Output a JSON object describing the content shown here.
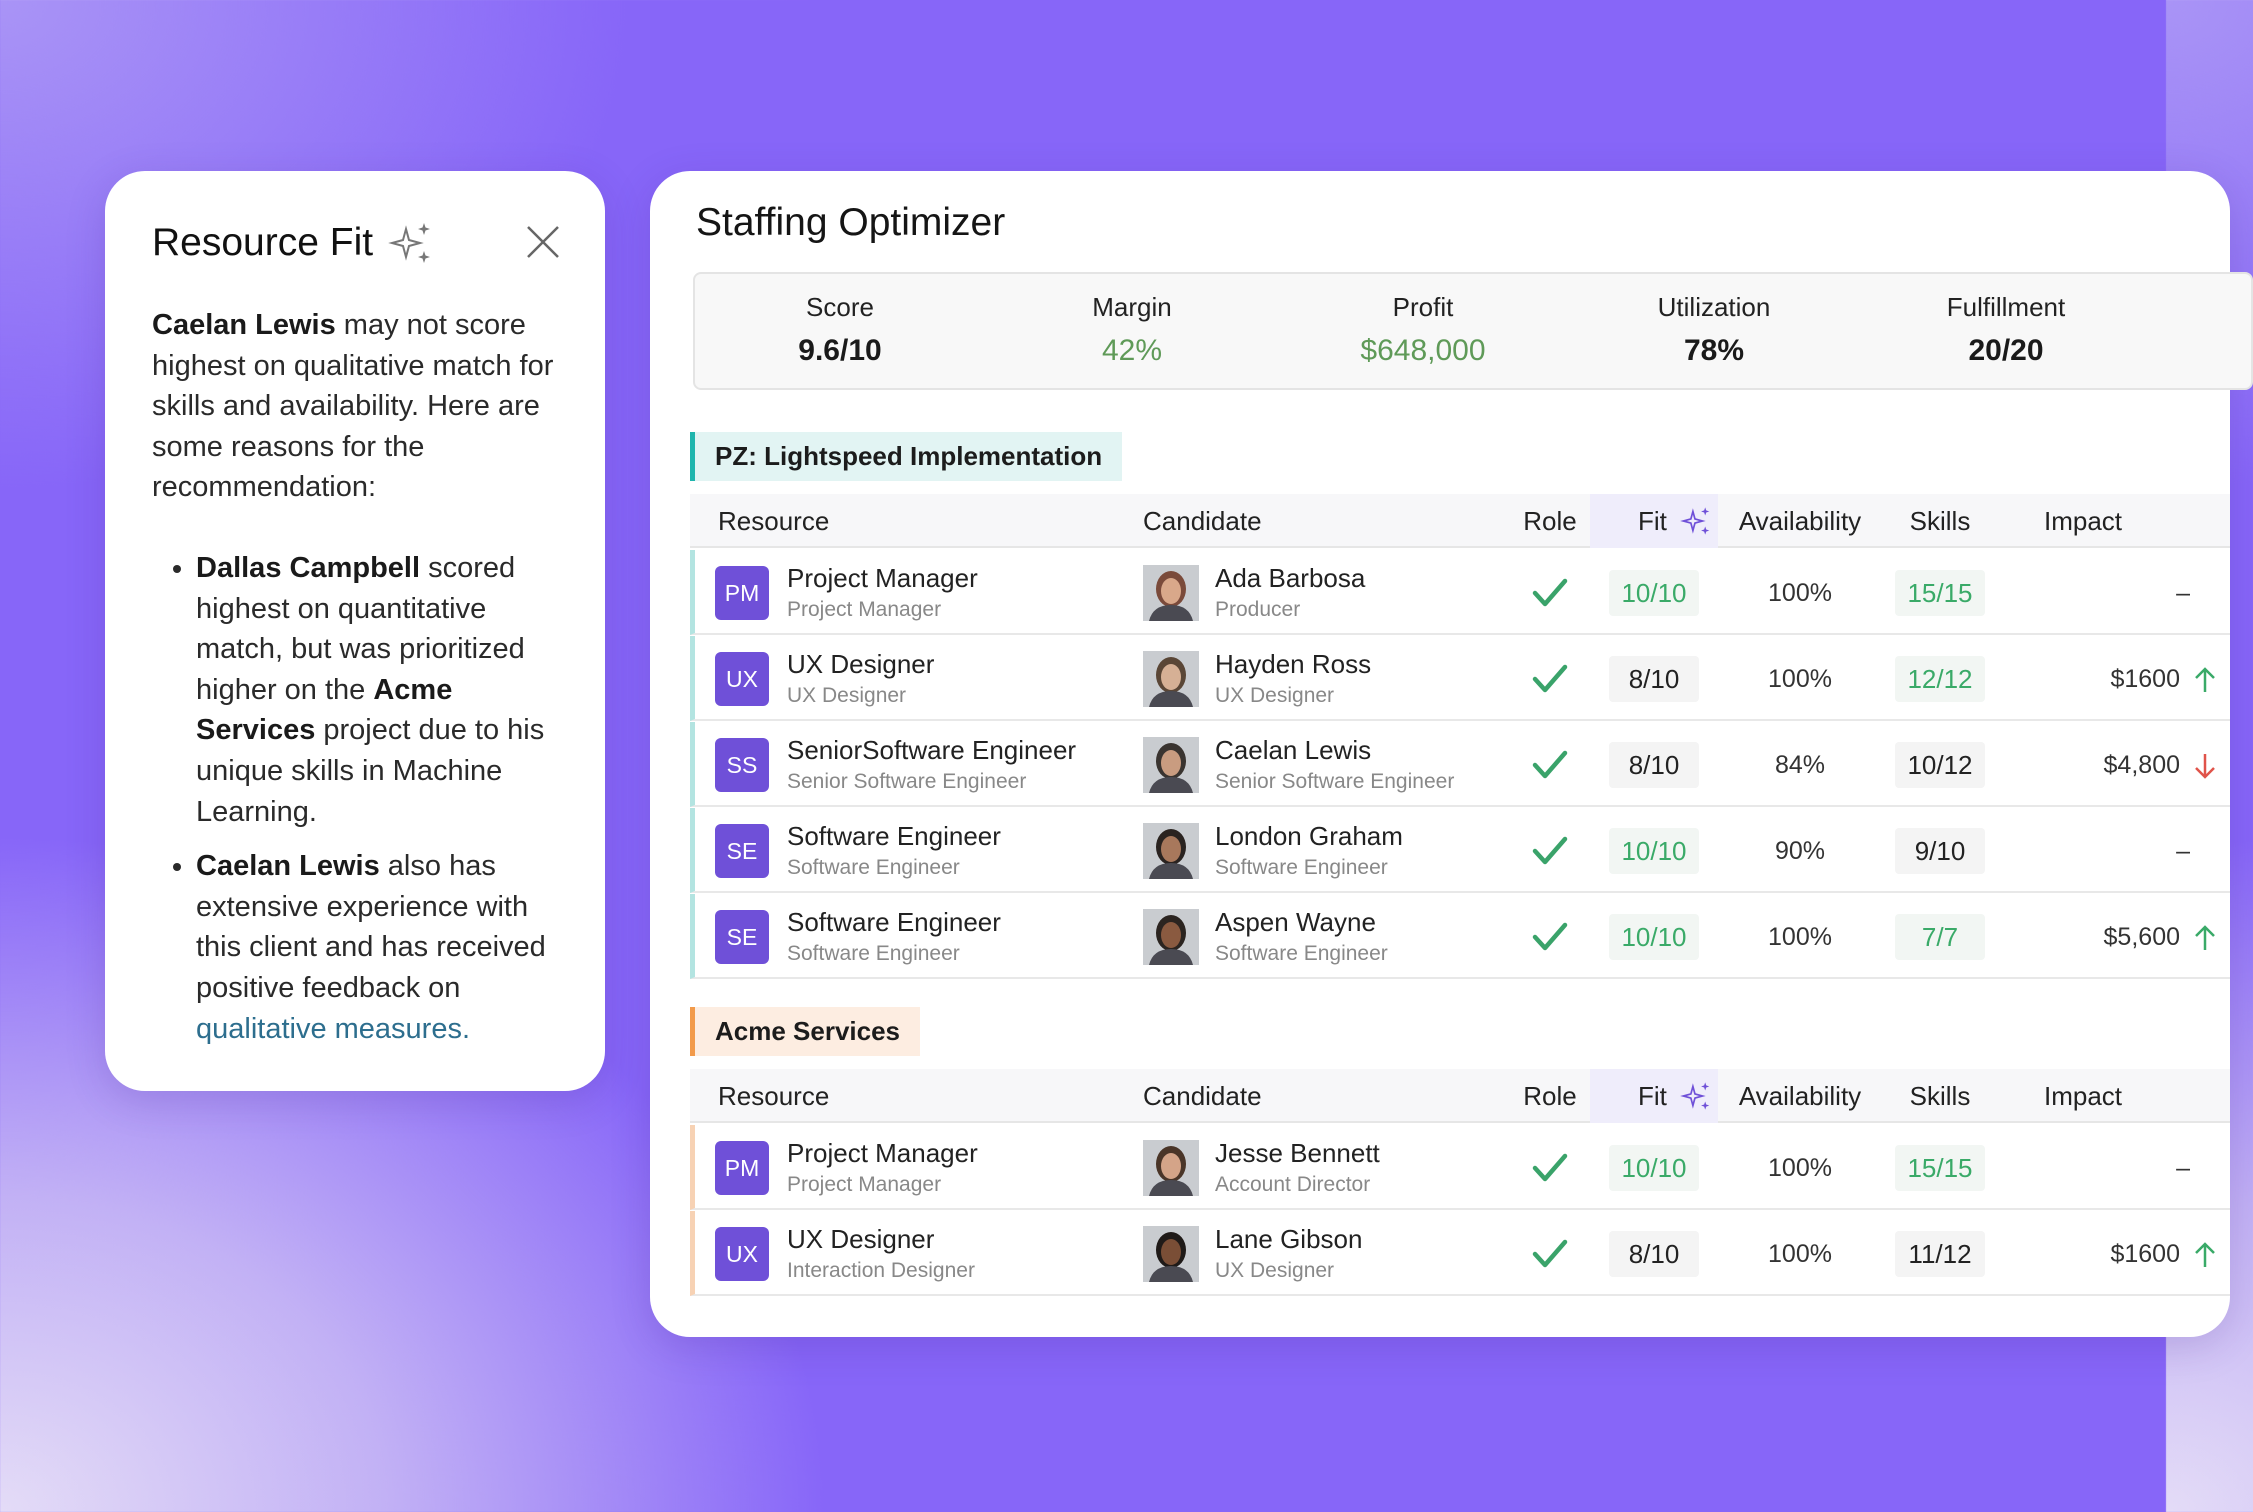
{
  "fit_panel": {
    "title": "Resource Fit",
    "title_icon": "sparkle-icon",
    "close_icon": "close-icon",
    "intro": [
      {
        "bold": true,
        "text": "Caelan Lewis"
      },
      {
        "bold": false,
        "text": " may not score highest on qualitative match for skills and availability. Here are some reasons for the recommendation:"
      }
    ],
    "bullets": [
      [
        {
          "bold": true,
          "text": "Dallas Campbell"
        },
        {
          "bold": false,
          "text": " scored highest on quantitative match, but was prioritized higher on the "
        },
        {
          "bold": true,
          "text": "Acme Services"
        },
        {
          "bold": false,
          "text": " project due to his unique skills in Machine Learning."
        }
      ],
      [
        {
          "bold": true,
          "text": "Caelan Lewis"
        },
        {
          "bold": false,
          "text": " also has extensive experience with this client and has received positive feedback on "
        },
        {
          "link": true,
          "text": "qualitative measures."
        }
      ]
    ]
  },
  "optimizer": {
    "title": "Staffing Optimizer",
    "metrics": [
      {
        "label": "Score",
        "value": "9.6/10",
        "positive": false
      },
      {
        "label": "Margin",
        "value": "42%",
        "positive": true
      },
      {
        "label": "Profit",
        "value": "$648,000",
        "positive": true
      },
      {
        "label": "Utilization",
        "value": "78%",
        "positive": false
      },
      {
        "label": "Fulfillment",
        "value": "20/20",
        "positive": false
      }
    ],
    "columns": {
      "resource": "Resource",
      "candidate": "Candidate",
      "role": "Role",
      "fit": "Fit",
      "availability": "Availability",
      "skills": "Skills",
      "impact": "Impact"
    },
    "sections": [
      {
        "name": "PZ: Lightspeed Implementation",
        "accent": "#1fb5ad",
        "tag_bg": "#e2f4f3",
        "row_accent": "#b3e4e1",
        "rows": [
          {
            "badge": "PM",
            "resource": "Project Manager",
            "resource_sub": "Project Manager",
            "candidate": "Ada Barbosa",
            "candidate_role": "Producer",
            "role_match": true,
            "fit": "10/10",
            "fit_high": true,
            "availability": "100%",
            "skills": "15/15",
            "skills_high": true,
            "impact": "–",
            "trend": ""
          },
          {
            "badge": "UX",
            "resource": "UX Designer",
            "resource_sub": "UX Designer",
            "candidate": "Hayden Ross",
            "candidate_role": "UX Designer",
            "role_match": true,
            "fit": "8/10",
            "fit_high": false,
            "availability": "100%",
            "skills": "12/12",
            "skills_high": true,
            "impact": "$1600",
            "trend": "up"
          },
          {
            "badge": "SS",
            "resource": "SeniorSoftware Engineer",
            "resource_sub": "Senior Software Engineer",
            "candidate": "Caelan Lewis",
            "candidate_role": "Senior Software Engineer",
            "role_match": true,
            "fit": "8/10",
            "fit_high": false,
            "availability": "84%",
            "skills": "10/12",
            "skills_high": false,
            "impact": "$4,800",
            "trend": "down"
          },
          {
            "badge": "SE",
            "resource": "Software Engineer",
            "resource_sub": "Software Engineer",
            "candidate": "London Graham",
            "candidate_role": "Software Engineer",
            "role_match": true,
            "fit": "10/10",
            "fit_high": true,
            "availability": "90%",
            "skills": "9/10",
            "skills_high": false,
            "impact": "–",
            "trend": ""
          },
          {
            "badge": "SE",
            "resource": "Software Engineer",
            "resource_sub": "Software Engineer",
            "candidate": "Aspen Wayne",
            "candidate_role": "Software Engineer",
            "role_match": true,
            "fit": "10/10",
            "fit_high": true,
            "availability": "100%",
            "skills": "7/7",
            "skills_high": true,
            "impact": "$5,600",
            "trend": "up"
          }
        ]
      },
      {
        "name": "Acme Services",
        "accent": "#f29a4a",
        "tag_bg": "#fdede1",
        "row_accent": "#f7d2b4",
        "rows": [
          {
            "badge": "PM",
            "resource": "Project Manager",
            "resource_sub": "Project Manager",
            "candidate": "Jesse Bennett",
            "candidate_role": "Account Director",
            "role_match": true,
            "fit": "10/10",
            "fit_high": true,
            "availability": "100%",
            "skills": "15/15",
            "skills_high": true,
            "impact": "–",
            "trend": ""
          },
          {
            "badge": "UX",
            "resource": "UX Designer",
            "resource_sub": "Interaction Designer",
            "candidate": "Lane Gibson",
            "candidate_role": "UX Designer",
            "role_match": true,
            "fit": "8/10",
            "fit_high": false,
            "availability": "100%",
            "skills": "11/12",
            "skills_high": false,
            "impact": "$1600",
            "trend": "up"
          }
        ]
      }
    ]
  },
  "colors": {
    "accent": "#6f50d8",
    "positive": "#3aaa68",
    "negative": "#e0534a",
    "background": "#8766f8"
  }
}
